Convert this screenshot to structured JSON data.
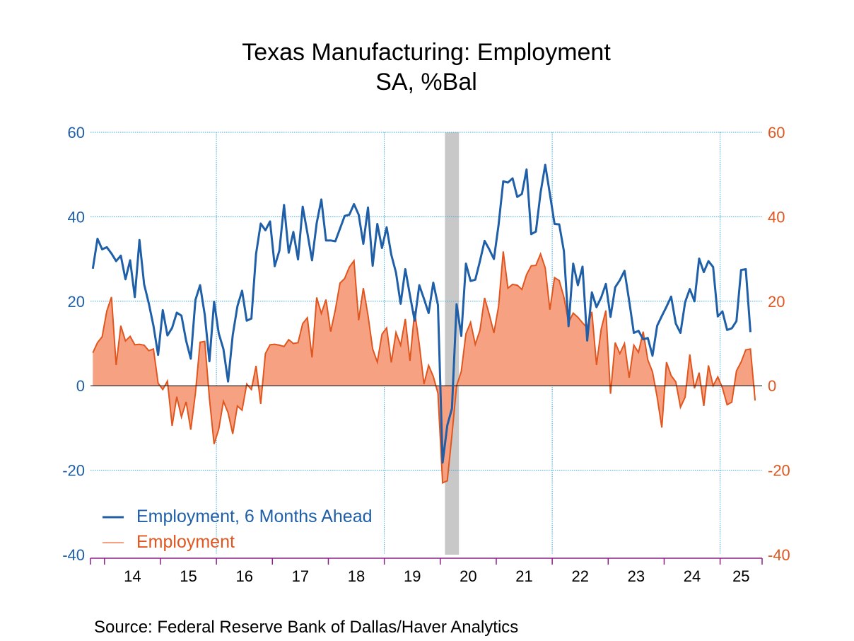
{
  "chart_data": {
    "type": "line",
    "title": "Texas Manufacturing: Employment",
    "subtitle": "SA, %Bal",
    "source": "Source:  Federal Reserve Bank of Dallas/Haver Analytics",
    "x_start": "2013-10",
    "x_end": "2025-09",
    "x_tick_labels": [
      "14",
      "15",
      "16",
      "17",
      "18",
      "19",
      "20",
      "21",
      "22",
      "23",
      "24",
      "25"
    ],
    "left_axis": {
      "ylim": [
        -40,
        60
      ],
      "ticks": [
        "-40",
        "-20",
        "0",
        "20",
        "40",
        "60"
      ],
      "color": "#1f5fa8"
    },
    "right_axis": {
      "ylim": [
        -40,
        60
      ],
      "ticks": [
        "-40",
        "-20",
        "0",
        "20",
        "40",
        "60"
      ],
      "color": "#e0561f"
    },
    "grid": true,
    "recession": {
      "start": "2020-02",
      "end": "2020-04"
    },
    "legend_position": "bottom-left",
    "series": [
      {
        "name": "Employment, 6 Months Ahead",
        "type": "line",
        "color": "#1f5fa8",
        "start": "2013-10",
        "values": [
          27.7,
          34.8,
          32.3,
          32.8,
          31.3,
          29.5,
          30.8,
          25.2,
          29.7,
          21.0,
          34.5,
          24.0,
          19.5,
          14.2,
          7.3,
          17.9,
          11.9,
          13.7,
          17.3,
          16.6,
          10.7,
          6.4,
          20.3,
          23.8,
          16.8,
          5.8,
          19.9,
          12.4,
          8.7,
          1.0,
          12.0,
          18.8,
          22.5,
          15.4,
          15.9,
          31.2,
          38.4,
          36.8,
          38.9,
          28.3,
          32.0,
          42.8,
          31.5,
          36.4,
          29.9,
          42.4,
          36.2,
          29.7,
          38.5,
          44.1,
          34.4,
          34.4,
          34.2,
          37.2,
          40.2,
          40.5,
          43.0,
          40.5,
          33.6,
          42.2,
          28.4,
          38.3,
          32.6,
          37.5,
          31.0,
          26.8,
          19.4,
          27.6,
          21.4,
          15.4,
          23.8,
          20.6,
          17.2,
          24.4,
          19.1,
          -18.2,
          -9.4,
          -5.4,
          19.3,
          11.8,
          28.9,
          24.8,
          25.1,
          29.5,
          34.3,
          32.3,
          30.0,
          38.1,
          48.4,
          48.1,
          49.1,
          44.7,
          45.4,
          51.2,
          35.9,
          36.5,
          45.7,
          52.3,
          45.4,
          38.3,
          38.2,
          31.9,
          14.1,
          28.9,
          23.8,
          28.2,
          10.7,
          22.1,
          18.6,
          20.9,
          24.1,
          16.3,
          23.3,
          25.0,
          27.2,
          20.1,
          12.5,
          13.0,
          11.0,
          11.3,
          7.1,
          14.2,
          16.5,
          18.7,
          21.1,
          14.7,
          12.5,
          19.8,
          22.9,
          20.0,
          30.1,
          26.9,
          29.5,
          28.1,
          16.4,
          17.6,
          13.2,
          13.6,
          15.3,
          27.4,
          27.6,
          12.7
        ]
      },
      {
        "name": "Employment",
        "type": "area",
        "color": "#e0561f",
        "fill": "#f7a183",
        "start": "2013-10",
        "values": [
          7.8,
          10.2,
          11.6,
          17.7,
          21.0,
          4.9,
          14.2,
          10.6,
          11.7,
          9.7,
          9.8,
          9.6,
          8.3,
          8.7,
          0.6,
          -0.9,
          1.1,
          -9.5,
          -2.6,
          -7.4,
          -3.8,
          -10.4,
          -1.8,
          10.3,
          10.5,
          -3.0,
          -13.8,
          -10.3,
          -3.7,
          -6.4,
          -11.4,
          -4.8,
          -5.8,
          0.4,
          -0.9,
          4.7,
          -4.3,
          7.6,
          9.7,
          9.8,
          9.6,
          9.3,
          10.9,
          10.0,
          10.2,
          14.7,
          16.1,
          6.7,
          20.9,
          17.1,
          20.4,
          12.8,
          18.0,
          24.3,
          25.4,
          28.1,
          29.6,
          15.5,
          23.1,
          16.7,
          8.7,
          5.6,
          12.2,
          13.7,
          5.5,
          12.6,
          9.6,
          15.8,
          5.9,
          17.6,
          9.8,
          0.4,
          4.8,
          2.2,
          -1.8,
          -23.0,
          -22.5,
          -11.7,
          0.0,
          3.4,
          12.3,
          15.0,
          9.8,
          13.1,
          20.8,
          16.9,
          12.5,
          18.8,
          31.8,
          23.1,
          24.0,
          23.8,
          22.8,
          26.3,
          28.4,
          28.5,
          31.2,
          27.9,
          18.0,
          25.6,
          24.9,
          21.0,
          15.0,
          17.2,
          16.2,
          14.9,
          13.7,
          17.5,
          4.9,
          13.4,
          17.8,
          -1.9,
          10.2,
          7.6,
          10.0,
          1.9,
          9.6,
          7.9,
          12.8,
          6.1,
          3.3,
          -2.7,
          -9.9,
          5.6,
          2.4,
          0.9,
          -5.1,
          -2.7,
          7.4,
          -0.6,
          3.1,
          -4.8,
          4.8,
          0.0,
          2.1,
          -0.5,
          -4.5,
          -3.9,
          3.5,
          5.6,
          8.5,
          8.7,
          -3.5
        ]
      }
    ]
  }
}
